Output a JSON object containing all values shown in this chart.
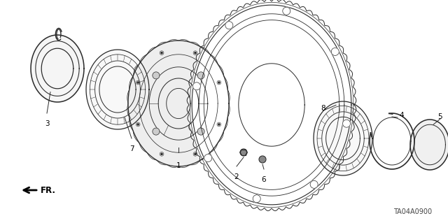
{
  "bg_color": "#ffffff",
  "line_color": "#2a2a2a",
  "label_color": "#000000",
  "diagram_code": "TA04A0900",
  "figsize": [
    6.4,
    3.19
  ],
  "dpi": 100
}
